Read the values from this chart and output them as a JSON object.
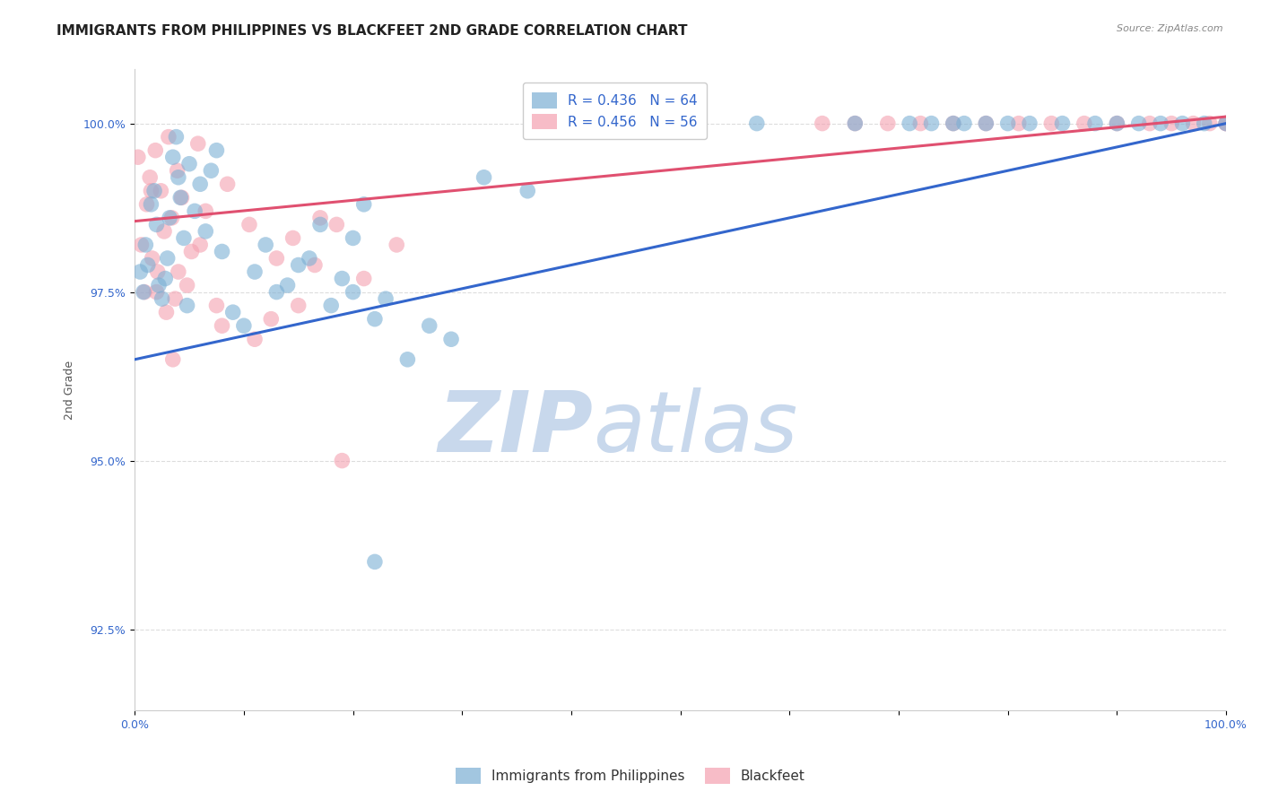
{
  "title": "IMMIGRANTS FROM PHILIPPINES VS BLACKFEET 2ND GRADE CORRELATION CHART",
  "source": "Source: ZipAtlas.com",
  "ylabel": "2nd Grade",
  "yticks": [
    92.5,
    95.0,
    97.5,
    100.0
  ],
  "ytick_labels": [
    "92.5%",
    "95.0%",
    "97.5%",
    "100.0%"
  ],
  "xmin": 0.0,
  "xmax": 100.0,
  "ymin": 91.3,
  "ymax": 100.8,
  "blue_color": "#7BAFD4",
  "pink_color": "#F4A0B0",
  "blue_line_color": "#3366CC",
  "pink_line_color": "#E05070",
  "tick_color": "#3366CC",
  "blue_label": "Immigrants from Philippines",
  "pink_label": "Blackfeet",
  "blue_R": 0.436,
  "blue_N": 64,
  "pink_R": 0.456,
  "pink_N": 56,
  "blue_line_x0": 0.0,
  "blue_line_y0": 96.5,
  "blue_line_x1": 100.0,
  "blue_line_y1": 100.0,
  "pink_line_x0": 0.0,
  "pink_line_y0": 98.55,
  "pink_line_x1": 100.0,
  "pink_line_y1": 100.1,
  "blue_scatter_x": [
    0.5,
    0.8,
    1.0,
    1.2,
    1.5,
    1.8,
    2.0,
    2.2,
    2.5,
    2.8,
    3.0,
    3.2,
    3.5,
    3.8,
    4.0,
    4.2,
    4.5,
    4.8,
    5.0,
    5.5,
    6.0,
    6.5,
    7.0,
    7.5,
    8.0,
    9.0,
    10.0,
    11.0,
    12.0,
    13.0,
    14.0,
    15.0,
    16.0,
    17.0,
    18.0,
    19.0,
    20.0,
    21.0,
    22.0,
    23.0,
    25.0,
    27.0,
    29.0,
    32.0,
    36.0,
    22.0,
    20.0,
    57.0,
    66.0,
    71.0,
    73.0,
    75.0,
    76.0,
    78.0,
    80.0,
    82.0,
    85.0,
    88.0,
    90.0,
    92.0,
    94.0,
    96.0,
    98.0,
    100.0
  ],
  "blue_scatter_y": [
    97.8,
    97.5,
    98.2,
    97.9,
    98.8,
    99.0,
    98.5,
    97.6,
    97.4,
    97.7,
    98.0,
    98.6,
    99.5,
    99.8,
    99.2,
    98.9,
    98.3,
    97.3,
    99.4,
    98.7,
    99.1,
    98.4,
    99.3,
    99.6,
    98.1,
    97.2,
    97.0,
    97.8,
    98.2,
    97.5,
    97.6,
    97.9,
    98.0,
    98.5,
    97.3,
    97.7,
    98.3,
    98.8,
    97.1,
    97.4,
    96.5,
    97.0,
    96.8,
    99.2,
    99.0,
    93.5,
    97.5,
    100.0,
    100.0,
    100.0,
    100.0,
    100.0,
    100.0,
    100.0,
    100.0,
    100.0,
    100.0,
    100.0,
    100.0,
    100.0,
    100.0,
    100.0,
    100.0,
    100.0
  ],
  "pink_scatter_x": [
    0.3,
    0.6,
    0.9,
    1.1,
    1.4,
    1.6,
    1.9,
    2.1,
    2.4,
    2.7,
    2.9,
    3.1,
    3.4,
    3.7,
    3.9,
    4.3,
    4.8,
    5.2,
    5.8,
    6.5,
    7.5,
    8.5,
    10.5,
    12.5,
    14.5,
    16.5,
    18.5,
    21.0,
    24.0,
    1.5,
    3.5,
    2.0,
    4.0,
    6.0,
    8.0,
    11.0,
    13.0,
    15.0,
    17.0,
    19.0,
    63.0,
    66.0,
    69.0,
    72.0,
    75.0,
    78.0,
    81.0,
    84.0,
    87.0,
    90.0,
    93.0,
    95.0,
    97.0,
    98.5,
    100.0,
    100.0
  ],
  "pink_scatter_y": [
    99.5,
    98.2,
    97.5,
    98.8,
    99.2,
    98.0,
    99.6,
    97.8,
    99.0,
    98.4,
    97.2,
    99.8,
    98.6,
    97.4,
    99.3,
    98.9,
    97.6,
    98.1,
    99.7,
    98.7,
    97.3,
    99.1,
    98.5,
    97.1,
    98.3,
    97.9,
    98.5,
    97.7,
    98.2,
    99.0,
    96.5,
    97.5,
    97.8,
    98.2,
    97.0,
    96.8,
    98.0,
    97.3,
    98.6,
    95.0,
    100.0,
    100.0,
    100.0,
    100.0,
    100.0,
    100.0,
    100.0,
    100.0,
    100.0,
    100.0,
    100.0,
    100.0,
    100.0,
    100.0,
    100.0,
    100.0
  ],
  "watermark_zip": "ZIP",
  "watermark_atlas": "atlas",
  "watermark_zip_color": "#C8D8EC",
  "watermark_atlas_color": "#C8D8EC",
  "background_color": "#FFFFFF",
  "grid_color": "#DDDDDD",
  "title_fontsize": 11,
  "axis_label_fontsize": 9,
  "tick_fontsize": 9,
  "legend_fontsize": 11
}
